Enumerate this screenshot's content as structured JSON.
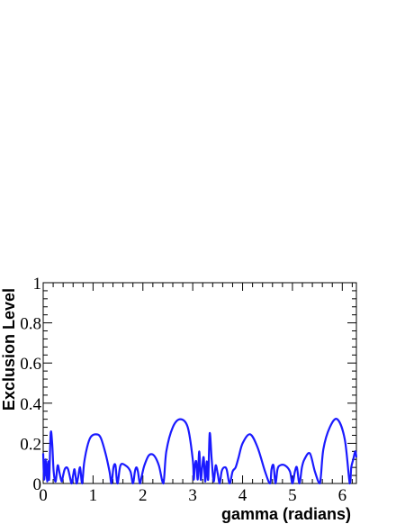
{
  "chart_data": {
    "type": "line",
    "title": "",
    "xlabel": "gamma (radians)",
    "ylabel": "Exclusion Level",
    "xlim": [
      0,
      6.2832
    ],
    "ylim": [
      0,
      1
    ],
    "x_ticks": [
      0,
      1,
      2,
      3,
      4,
      5,
      6
    ],
    "x_tick_labels": [
      "0",
      "1",
      "2",
      "3",
      "4",
      "5",
      "6"
    ],
    "y_ticks": [
      0,
      0.2,
      0.4,
      0.6,
      0.8,
      1
    ],
    "y_tick_labels": [
      "0",
      "0.2",
      "0.4",
      "0.6",
      "0.8",
      "1"
    ],
    "grid": false,
    "legend": "none",
    "series": [
      {
        "color": "#1a1aff",
        "x": [
          0.0,
          0.02,
          0.05,
          0.08,
          0.1,
          0.12,
          0.15,
          0.18,
          0.21,
          0.25,
          0.29,
          0.33,
          0.37,
          0.4,
          0.43,
          0.47,
          0.5,
          0.53,
          0.57,
          0.6,
          0.63,
          0.67,
          0.7,
          0.74,
          0.78,
          0.82,
          0.88,
          0.95,
          1.05,
          1.15,
          1.25,
          1.33,
          1.37,
          1.41,
          1.45,
          1.49,
          1.55,
          1.65,
          1.75,
          1.8,
          1.84,
          1.87,
          1.9,
          1.94,
          1.98,
          2.03,
          2.12,
          2.22,
          2.32,
          2.41,
          2.47,
          2.6,
          2.75,
          2.9,
          3.0,
          3.02,
          3.04,
          3.07,
          3.1,
          3.13,
          3.16,
          3.19,
          3.22,
          3.25,
          3.28,
          3.31,
          3.34,
          3.38,
          3.42,
          3.46,
          3.5,
          3.54,
          3.58,
          3.63,
          3.68,
          3.74,
          3.8,
          3.86,
          3.92,
          4.0,
          4.15,
          4.3,
          4.45,
          4.55,
          4.58,
          4.62,
          4.66,
          4.7,
          4.75,
          4.85,
          4.95,
          5.0,
          5.05,
          5.09,
          5.14,
          5.19,
          5.24,
          5.35,
          5.45,
          5.55,
          5.62,
          5.75,
          5.9,
          6.05,
          6.15,
          6.18,
          6.22,
          6.26,
          6.2832
        ],
        "y": [
          0.15,
          0.02,
          0.12,
          0.01,
          0.11,
          0.02,
          0.25,
          0.2,
          0.06,
          0.01,
          0.09,
          0.05,
          0.01,
          0.04,
          0.07,
          0.08,
          0.07,
          0.04,
          0.0,
          0.04,
          0.07,
          0.0,
          0.03,
          0.08,
          0.0,
          0.1,
          0.18,
          0.23,
          0.245,
          0.23,
          0.15,
          0.06,
          0.0,
          0.08,
          0.09,
          0.0,
          0.09,
          0.09,
          0.06,
          0.0,
          0.06,
          0.08,
          0.06,
          0.0,
          0.04,
          0.09,
          0.14,
          0.14,
          0.09,
          0.0,
          0.16,
          0.28,
          0.32,
          0.28,
          0.12,
          0.02,
          0.08,
          0.11,
          0.02,
          0.16,
          0.02,
          0.08,
          0.13,
          0.01,
          0.11,
          0.02,
          0.25,
          0.12,
          0.01,
          0.09,
          0.05,
          0.0,
          0.06,
          0.08,
          0.07,
          0.0,
          0.06,
          0.08,
          0.13,
          0.2,
          0.245,
          0.18,
          0.06,
          0.0,
          0.07,
          0.09,
          0.0,
          0.07,
          0.09,
          0.09,
          0.06,
          0.0,
          0.06,
          0.08,
          0.0,
          0.08,
          0.12,
          0.15,
          0.06,
          0.0,
          0.17,
          0.28,
          0.32,
          0.22,
          0.0,
          0.08,
          0.12,
          0.16,
          0.13
        ]
      }
    ]
  }
}
